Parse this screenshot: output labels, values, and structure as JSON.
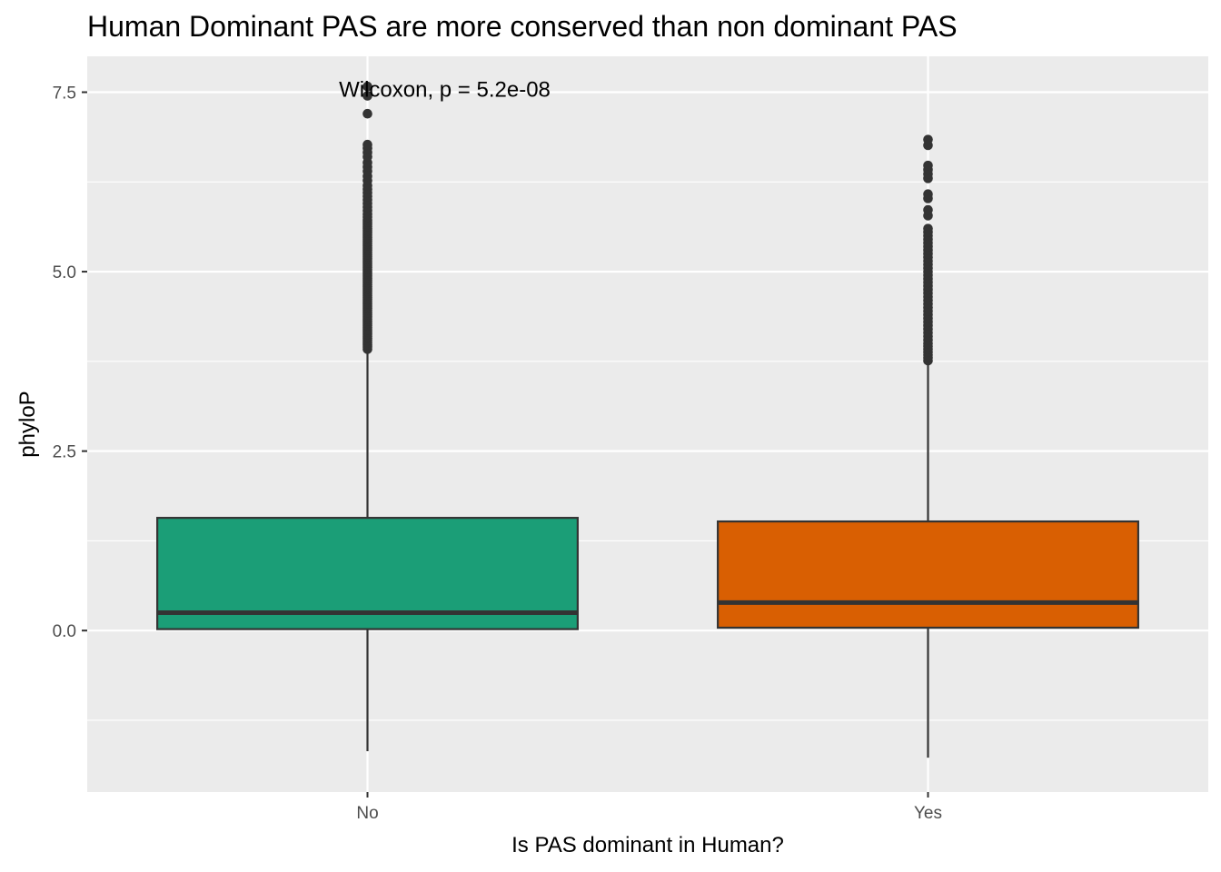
{
  "chart_data": {
    "type": "boxplot",
    "title": "Human Dominant PAS are more conserved than non dominant PAS",
    "xlabel": "Is PAS dominant in Human?",
    "ylabel": "phyloP",
    "categories": [
      "No",
      "Yes"
    ],
    "ylim": [
      -2.25,
      8.0
    ],
    "y_ticks": [
      0.0,
      2.5,
      5.0,
      7.5
    ],
    "y_tick_labels": [
      "0.0",
      "2.5",
      "5.0",
      "7.5"
    ],
    "grid": true,
    "annotation": {
      "text": "Wilcoxon, p = 5.2e-08",
      "x_category": "No",
      "y": 7.5
    },
    "boxes": [
      {
        "category": "No",
        "fill": "#1b9e77",
        "whisker_low": -1.68,
        "q1": 0.02,
        "median": 0.25,
        "q3": 1.57,
        "whisker_high": 3.9,
        "outliers": [
          3.92,
          3.95,
          3.98,
          4.01,
          4.04,
          4.07,
          4.1,
          4.13,
          4.16,
          4.19,
          4.22,
          4.25,
          4.28,
          4.31,
          4.34,
          4.37,
          4.4,
          4.43,
          4.46,
          4.49,
          4.52,
          4.55,
          4.58,
          4.61,
          4.64,
          4.67,
          4.7,
          4.73,
          4.76,
          4.79,
          4.82,
          4.85,
          4.88,
          4.91,
          4.94,
          4.97,
          5.0,
          5.03,
          5.06,
          5.09,
          5.12,
          5.15,
          5.18,
          5.21,
          5.24,
          5.27,
          5.3,
          5.33,
          5.36,
          5.39,
          5.42,
          5.45,
          5.48,
          5.51,
          5.54,
          5.57,
          5.6,
          5.63,
          5.66,
          5.69,
          5.72,
          5.76,
          5.8,
          5.85,
          5.9,
          5.95,
          6.0,
          6.05,
          6.1,
          6.15,
          6.2,
          6.27,
          6.33,
          6.4,
          6.46,
          6.52,
          6.6,
          6.66,
          6.72,
          6.77,
          7.2,
          7.45,
          7.58
        ]
      },
      {
        "category": "Yes",
        "fill": "#d95f02",
        "whisker_low": -1.77,
        "q1": 0.04,
        "median": 0.39,
        "q3": 1.52,
        "whisker_high": 3.72,
        "outliers": [
          3.76,
          3.8,
          3.84,
          3.88,
          3.92,
          3.96,
          4.0,
          4.05,
          4.1,
          4.15,
          4.2,
          4.25,
          4.3,
          4.35,
          4.4,
          4.45,
          4.5,
          4.55,
          4.6,
          4.65,
          4.7,
          4.75,
          4.8,
          4.85,
          4.9,
          4.95,
          5.0,
          5.05,
          5.1,
          5.15,
          5.2,
          5.25,
          5.3,
          5.35,
          5.4,
          5.45,
          5.5,
          5.55,
          5.6,
          5.78,
          5.86,
          6.02,
          6.08,
          6.3,
          6.36,
          6.42,
          6.48,
          6.76,
          6.84
        ]
      }
    ]
  }
}
